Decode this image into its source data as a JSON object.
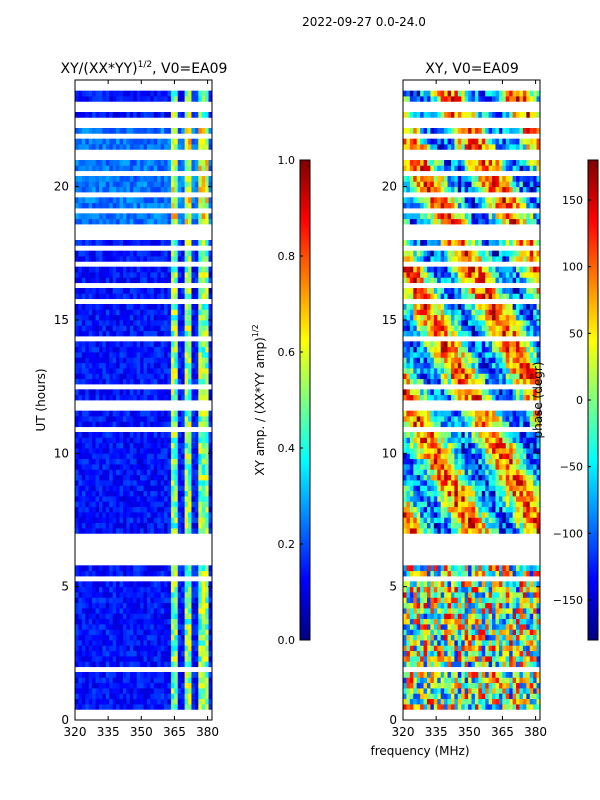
{
  "suptitle": "2022-09-27 0.0-24.0",
  "xlabel_shared": "frequency (MHz)",
  "chart_data": [
    {
      "type": "heatmap",
      "title_main": "XY/(XX*YY)",
      "title_sup": "1/2",
      "title_rest": ", V0=EA09",
      "ylabel": "UT (hours)",
      "xlim": [
        320,
        382
      ],
      "ylim": [
        0,
        24
      ],
      "xticks": [
        "320",
        "335",
        "350",
        "365",
        "380"
      ],
      "xtick_values": [
        320,
        335,
        350,
        365,
        380
      ],
      "yticks": [
        "0",
        "5",
        "10",
        "15",
        "20"
      ],
      "ytick_values": [
        0,
        5,
        10,
        15,
        20
      ],
      "colorbar": {
        "label_main": "XY amp. / (XX*YY amp)",
        "label_sup": "1/2",
        "range": [
          0.0,
          1.0
        ],
        "ticks": [
          "0.0",
          "0.2",
          "0.4",
          "0.6",
          "0.8",
          "1.0"
        ],
        "tick_values": [
          0.0,
          0.2,
          0.4,
          0.6,
          0.8,
          1.0
        ]
      },
      "gap_hours": [
        [
          0.0,
          0.1
        ],
        [
          0.3,
          0.38
        ],
        [
          0.55,
          0.62
        ],
        [
          1.2,
          1.28
        ],
        [
          1.9,
          2.0
        ],
        [
          2.4,
          2.48
        ],
        [
          3.0,
          3.08
        ],
        [
          3.6,
          3.66
        ],
        [
          4.2,
          4.28
        ],
        [
          4.8,
          4.86
        ],
        [
          5.3,
          5.36
        ],
        [
          5.8,
          5.86
        ],
        [
          5.9,
          7.0
        ],
        [
          7.6,
          7.66
        ],
        [
          10.9,
          11.1
        ],
        [
          11.7,
          11.9
        ],
        [
          12.4,
          12.52
        ],
        [
          13.0,
          13.1
        ],
        [
          14.3,
          14.4
        ],
        [
          15.6,
          15.72
        ],
        [
          16.3,
          16.42
        ],
        [
          17.0,
          17.12
        ],
        [
          17.7,
          17.8
        ],
        [
          18.05,
          18.5
        ],
        [
          19.0,
          19.25
        ],
        [
          19.6,
          19.8
        ],
        [
          20.4,
          20.5
        ],
        [
          21.1,
          21.3
        ],
        [
          21.8,
          22.0
        ],
        [
          22.2,
          22.5
        ],
        [
          22.8,
          22.95
        ],
        [
          23.1,
          23.2
        ],
        [
          23.6,
          24.0
        ]
      ],
      "hot_bands_mhz": [
        [
          363,
          367
        ],
        [
          370,
          372
        ],
        [
          376,
          380
        ]
      ]
    },
    {
      "type": "heatmap",
      "title_main": "XY, V0=EA09",
      "xlim": [
        320,
        382
      ],
      "ylim": [
        0,
        24
      ],
      "xticks": [
        "320",
        "335",
        "350",
        "365",
        "380"
      ],
      "xtick_values": [
        320,
        335,
        350,
        365,
        380
      ],
      "yticks": [
        "0",
        "5",
        "10",
        "15",
        "20"
      ],
      "ytick_values": [
        0,
        5,
        10,
        15,
        20
      ],
      "colorbar": {
        "label": "phase (degr)",
        "range": [
          -180,
          180
        ],
        "ticks": [
          "−150",
          "−100",
          "−50",
          "0",
          "50",
          "100",
          "150"
        ],
        "tick_values": [
          -150,
          -100,
          -50,
          0,
          50,
          100,
          150
        ]
      },
      "gap_hours": [
        [
          0.0,
          0.1
        ],
        [
          0.3,
          0.38
        ],
        [
          0.55,
          0.62
        ],
        [
          1.2,
          1.28
        ],
        [
          1.9,
          2.0
        ],
        [
          2.4,
          2.48
        ],
        [
          3.0,
          3.08
        ],
        [
          3.6,
          3.66
        ],
        [
          4.2,
          4.28
        ],
        [
          4.8,
          4.86
        ],
        [
          5.3,
          5.36
        ],
        [
          5.8,
          5.86
        ],
        [
          5.9,
          7.0
        ],
        [
          7.6,
          7.66
        ],
        [
          10.9,
          11.1
        ],
        [
          11.7,
          11.9
        ],
        [
          12.4,
          12.52
        ],
        [
          13.0,
          13.1
        ],
        [
          14.3,
          14.4
        ],
        [
          15.6,
          15.72
        ],
        [
          16.3,
          16.42
        ],
        [
          17.0,
          17.12
        ],
        [
          17.7,
          17.8
        ],
        [
          18.05,
          18.5
        ],
        [
          19.0,
          19.25
        ],
        [
          19.6,
          19.8
        ],
        [
          20.4,
          20.5
        ],
        [
          21.1,
          21.3
        ],
        [
          21.8,
          22.0
        ],
        [
          22.2,
          22.5
        ],
        [
          22.8,
          22.95
        ],
        [
          23.1,
          23.2
        ],
        [
          23.6,
          24.0
        ]
      ]
    }
  ]
}
